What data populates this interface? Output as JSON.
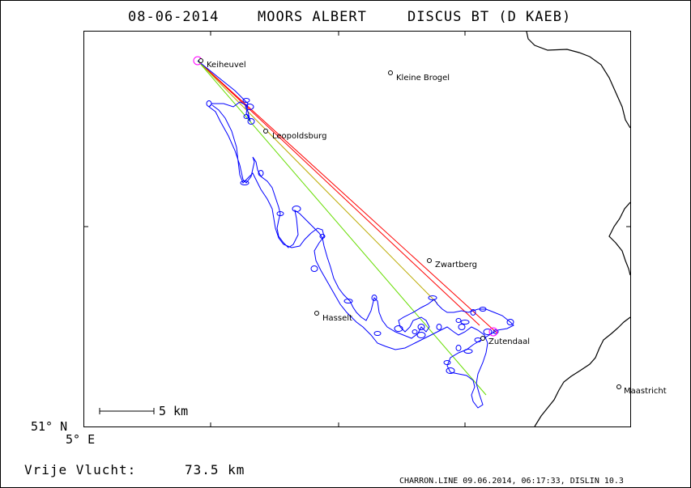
{
  "title": {
    "date": "08-06-2014",
    "pilot": "MOORS ALBERT",
    "glider": "DISCUS BT (D KAEB)"
  },
  "places": [
    {
      "id": "keiheuvel",
      "name": "Keiheuvel"
    },
    {
      "id": "kleine-brogel",
      "name": "Kleine Brogel"
    },
    {
      "id": "leopoldsburg",
      "name": "Leopoldsburg"
    },
    {
      "id": "zwartberg",
      "name": "Zwartberg"
    },
    {
      "id": "hasselt",
      "name": "Hasselt"
    },
    {
      "id": "genk-zutendaal",
      "name": "Zutendaal"
    },
    {
      "id": "maastricht",
      "name": "Maastricht"
    }
  ],
  "scale_bar": {
    "label": "5 km"
  },
  "axes": {
    "lat_label": "51° N",
    "lon_label": "5° E"
  },
  "footer": {
    "distance_label": "Vrije Vlucht:",
    "distance_value": "73.5 km",
    "credit": "CHARRON.LINE 09.06.2014, 06:17:33, DISLIN 10.3"
  },
  "colors": {
    "track": "#0000ff",
    "task_line_red": "#ff0000",
    "task_line_green": "#66dd00",
    "task_line_olive": "#bbaa00",
    "turnpoint_circle": "#ff00ff",
    "border": "#000000"
  }
}
